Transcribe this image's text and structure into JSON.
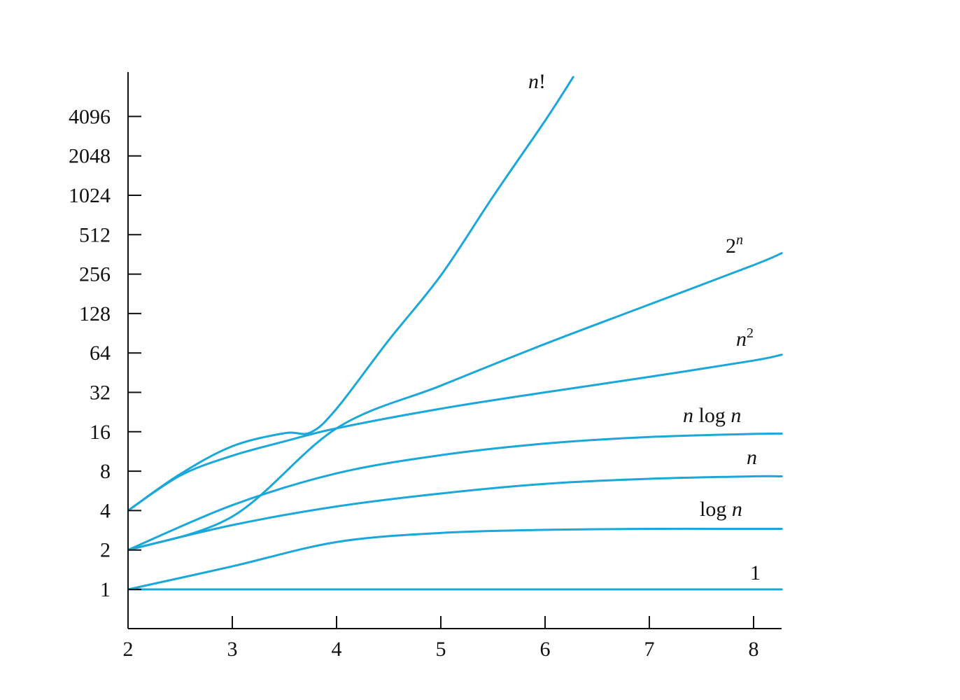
{
  "chart_data": {
    "type": "line",
    "title": "",
    "xlabel": "",
    "ylabel": "",
    "x_ticks": [
      "2",
      "3",
      "4",
      "5",
      "6",
      "7",
      "8"
    ],
    "y_ticks": [
      "1",
      "2",
      "4",
      "8",
      "16",
      "32",
      "64",
      "128",
      "256",
      "512",
      "1024",
      "2048",
      "4096"
    ],
    "y_scale": "log2",
    "xlim": [
      2,
      8.27
    ],
    "ylim": [
      0.5,
      8192
    ],
    "line_color": "#1aa7d9",
    "legend": "none",
    "grid": false,
    "series": [
      {
        "key": "factorial",
        "name_parts": [
          {
            "t": "n",
            "s": "it"
          },
          {
            "t": "!",
            "s": ""
          }
        ],
        "x": [
          2,
          2.5,
          3,
          3.5,
          3.75,
          4,
          4.5,
          5,
          5.5,
          6,
          6.27
        ],
        "y": [
          4,
          7.6,
          12.4,
          15.6,
          15.8,
          24,
          80,
          250,
          1000,
          3800,
          8192
        ]
      },
      {
        "key": "exp2",
        "name_parts": [
          {
            "t": "2",
            "s": ""
          },
          {
            "t": "n",
            "s": "sup it"
          }
        ],
        "x": [
          2,
          3,
          4,
          5,
          6,
          7,
          8,
          8.27
        ],
        "y": [
          2,
          3.6,
          17,
          36,
          75,
          150,
          300,
          370
        ]
      },
      {
        "key": "square",
        "name_parts": [
          {
            "t": "n",
            "s": "it"
          },
          {
            "t": "2",
            "s": "sup"
          }
        ],
        "x": [
          2,
          2.5,
          3,
          3.5,
          4,
          5,
          6,
          7,
          8,
          8.27
        ],
        "y": [
          4,
          7.4,
          10.5,
          13.5,
          17,
          24,
          32,
          42,
          56,
          62
        ]
      },
      {
        "key": "nlogn",
        "name_parts": [
          {
            "t": "n",
            "s": "it"
          },
          {
            "t": " log ",
            "s": ""
          },
          {
            "t": "n",
            "s": "it"
          }
        ],
        "x": [
          2,
          3,
          4,
          5,
          6,
          7,
          8,
          8.27
        ],
        "y": [
          2,
          4.4,
          7.7,
          10.6,
          13,
          14.6,
          15.4,
          15.5
        ]
      },
      {
        "key": "linear",
        "name_parts": [
          {
            "t": "n",
            "s": "it"
          }
        ],
        "x": [
          2,
          3,
          4,
          5,
          6,
          7,
          8,
          8.27
        ],
        "y": [
          2,
          3.1,
          4.3,
          5.4,
          6.4,
          7,
          7.3,
          7.3
        ]
      },
      {
        "key": "logn",
        "name_parts": [
          {
            "t": "log ",
            "s": ""
          },
          {
            "t": "n",
            "s": "it"
          }
        ],
        "x": [
          2,
          3,
          4,
          5,
          6,
          7,
          8,
          8.27
        ],
        "y": [
          1,
          1.5,
          2.3,
          2.7,
          2.85,
          2.9,
          2.9,
          2.9
        ]
      },
      {
        "key": "const",
        "name_parts": [
          {
            "t": "1",
            "s": ""
          }
        ],
        "x": [
          2,
          8.27
        ],
        "y": [
          1,
          1
        ]
      }
    ]
  }
}
